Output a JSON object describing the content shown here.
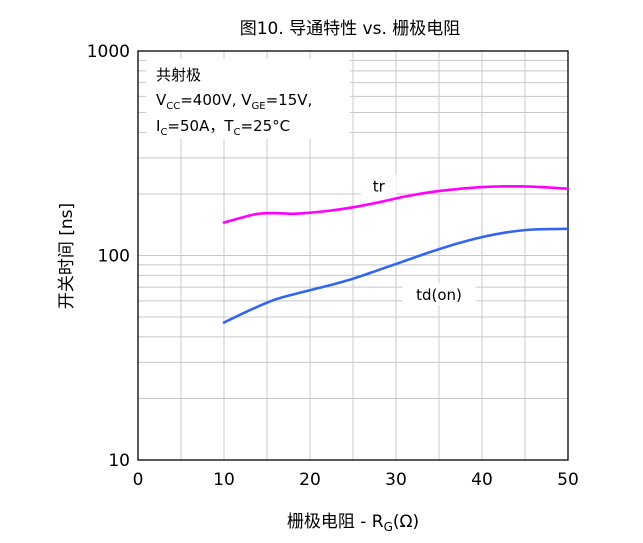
{
  "chart_data": {
    "type": "line",
    "title": "图10. 导通特性 vs. 栅极电阻",
    "xlabel": {
      "main": "栅极电阻 - R",
      "sub": "G",
      "unit": "(Ω)"
    },
    "ylabel": "开关时间 [ns]",
    "x_range": [
      0,
      50
    ],
    "y_range": [
      10,
      1000
    ],
    "y_scale": "log",
    "x_ticks": [
      0,
      10,
      20,
      30,
      40,
      50
    ],
    "x_tick_labels": [
      "0",
      "10",
      "20",
      "30",
      "40",
      "50"
    ],
    "y_ticks": [
      10,
      100,
      1000
    ],
    "y_tick_labels": [
      "10",
      "100",
      "1000"
    ],
    "grid": true,
    "annotation": {
      "line1": "共射极",
      "line2": {
        "v": "V",
        "cc": "CC",
        "mid": "=400V, V",
        "ge": "GE",
        "end": "=15V,"
      },
      "line3": {
        "i": "I",
        "ic": "C",
        "mid": "=50A，T",
        "tc": "C",
        "end": "=25°C"
      }
    },
    "series": [
      {
        "name": "tr",
        "color": "#ff00ff",
        "x": [
          10,
          12,
          14,
          16,
          18,
          20,
          22,
          25,
          28,
          31,
          34,
          37,
          40,
          43,
          46,
          50
        ],
        "y": [
          145,
          153,
          160,
          161,
          160,
          162,
          165,
          172,
          182,
          194,
          204,
          211,
          216,
          218,
          217,
          212
        ]
      },
      {
        "name": "td(on)",
        "color": "#3366ee",
        "x": [
          10,
          13,
          16,
          19,
          22,
          25,
          28,
          31,
          34,
          37,
          40,
          43,
          46,
          50
        ],
        "y": [
          47,
          54,
          61,
          66,
          71,
          77,
          85,
          94,
          104,
          114,
          123,
          130,
          134,
          135
        ]
      }
    ],
    "series_labels": [
      {
        "text": "tr",
        "series": 0,
        "x": 28,
        "y": 218
      },
      {
        "text": "td(on)",
        "series": 1,
        "x": 35,
        "y": 64
      }
    ]
  }
}
